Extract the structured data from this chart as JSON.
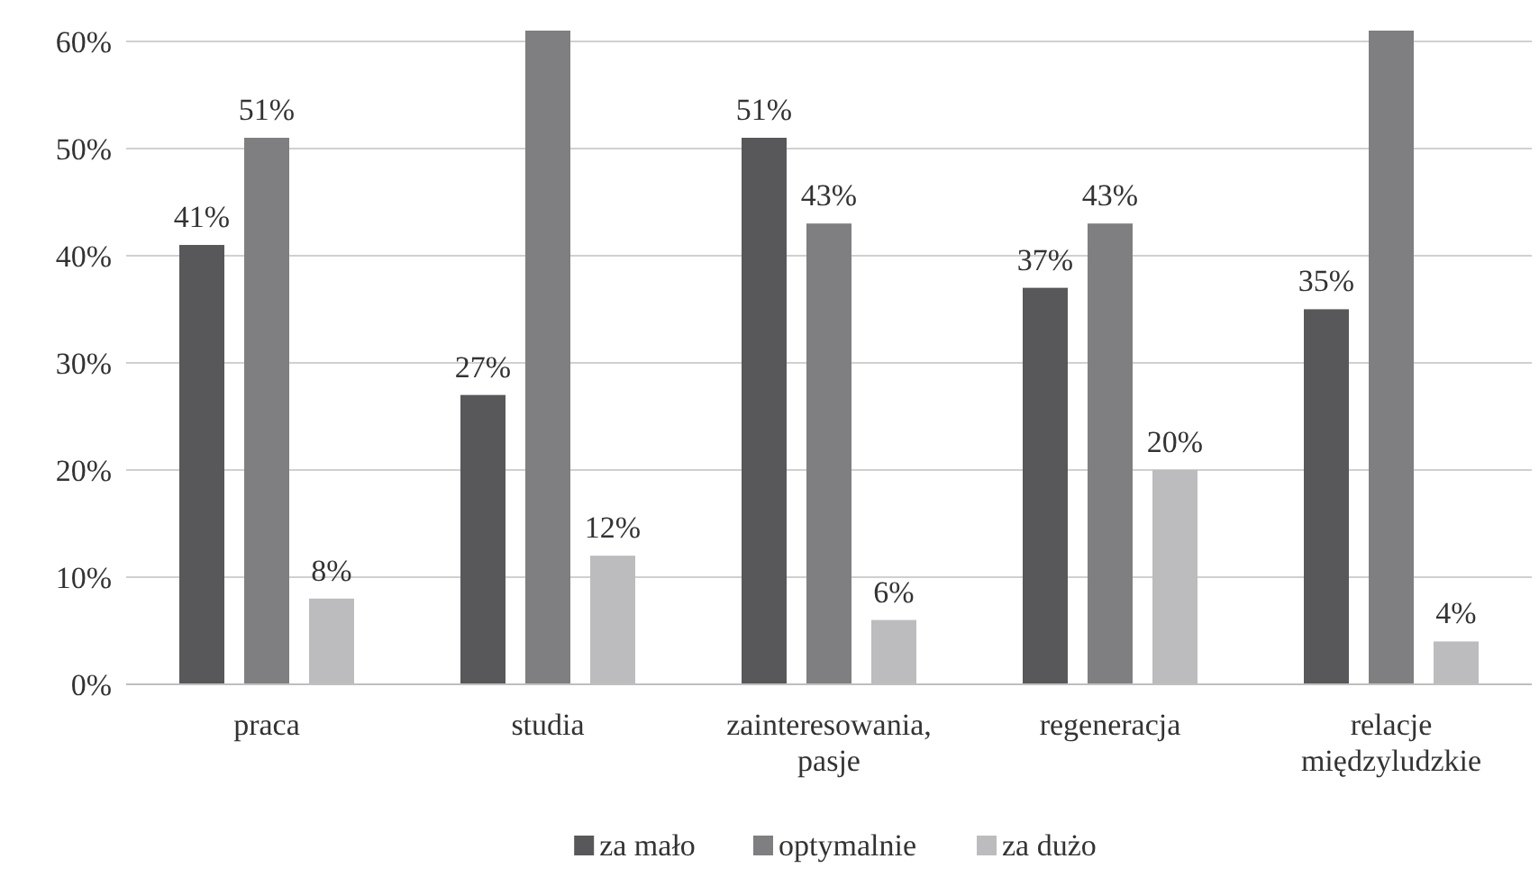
{
  "chart_data": {
    "type": "bar",
    "categories": [
      "praca",
      "studia",
      "zainteresowania, pasje",
      "regeneracja",
      "relacje międzyludzkie"
    ],
    "series": [
      {
        "name": "za mało",
        "color": "#58585a",
        "values": [
          41,
          27,
          51,
          37,
          35
        ],
        "value_labels": [
          "41%",
          "27%",
          "51%",
          "37%",
          "35%"
        ]
      },
      {
        "name": "optymalnie",
        "color": "#7f7f81",
        "values": [
          51,
          61,
          43,
          43,
          61
        ],
        "value_labels": [
          "51%",
          null,
          "43%",
          "43%",
          null
        ]
      },
      {
        "name": "za dużo",
        "color": "#bcbcbe",
        "values": [
          8,
          12,
          6,
          20,
          4
        ],
        "value_labels": [
          "8%",
          "12%",
          "6%",
          "20%",
          "4%"
        ]
      }
    ],
    "ylim": [
      0,
      61
    ],
    "yticks": [
      {
        "value": 0,
        "label": "0%"
      },
      {
        "value": 10,
        "label": "10%"
      },
      {
        "value": 20,
        "label": "20%"
      },
      {
        "value": 30,
        "label": "30%"
      },
      {
        "value": 40,
        "label": "40%"
      },
      {
        "value": 50,
        "label": "50%"
      },
      {
        "value": 60,
        "label": "60%"
      }
    ],
    "grid": "y",
    "legend": "bottom"
  }
}
